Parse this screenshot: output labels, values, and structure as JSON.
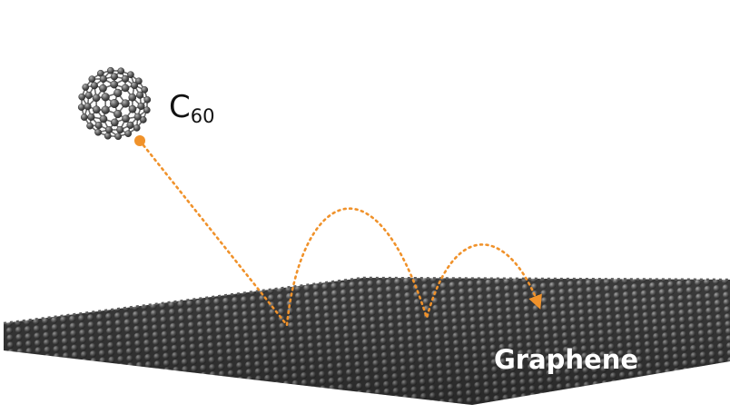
{
  "labels": {
    "molecule_main": "C",
    "molecule_sub": "60",
    "sheet": "Graphene"
  },
  "colors": {
    "background": "#ffffff",
    "trajectory": "#f0922b",
    "atom": "#4a4a4a",
    "atom_highlight": "#9a9a9a",
    "sheet_label": "#ffffff"
  }
}
